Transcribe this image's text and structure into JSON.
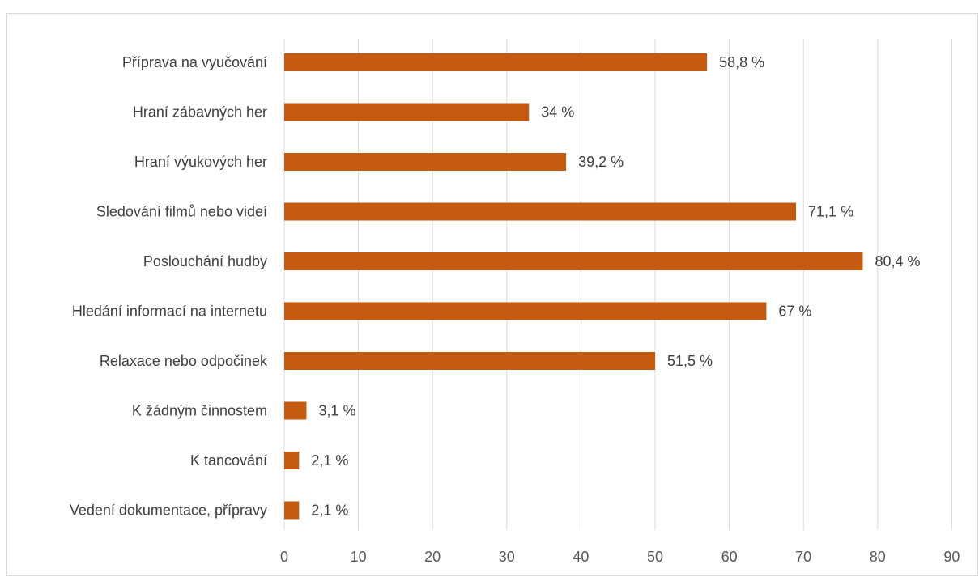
{
  "chart_data": {
    "type": "bar",
    "orientation": "horizontal",
    "categories": [
      "Příprava na vyučování",
      "Hraní zábavných her",
      "Hraní výukových her",
      "Sledování filmů nebo videí",
      "Poslouchání hudby",
      "Hledání informací na internetu",
      "Relaxace nebo odpočinek",
      "K žádným činnostem",
      "K tancování",
      "Vedení dokumentace, přípravy"
    ],
    "values": [
      57,
      33,
      38,
      69,
      78,
      65,
      50,
      3,
      2,
      2
    ],
    "data_labels": [
      "58,8 %",
      "34 %",
      "39,2 %",
      "71,1 %",
      "80,4 %",
      "67 %",
      "51,5 %",
      "3,1 %",
      "2,1 %",
      "2,1 %"
    ],
    "x_ticks": [
      "0",
      "10",
      "20",
      "30",
      "40",
      "50",
      "60",
      "70",
      "80",
      "90"
    ],
    "xlim": [
      0,
      90
    ],
    "title": "",
    "xlabel": "",
    "ylabel": "",
    "grid": true,
    "legend": "none",
    "bar_color": "#c55a11",
    "gridline_color": "#d9d9d9"
  }
}
